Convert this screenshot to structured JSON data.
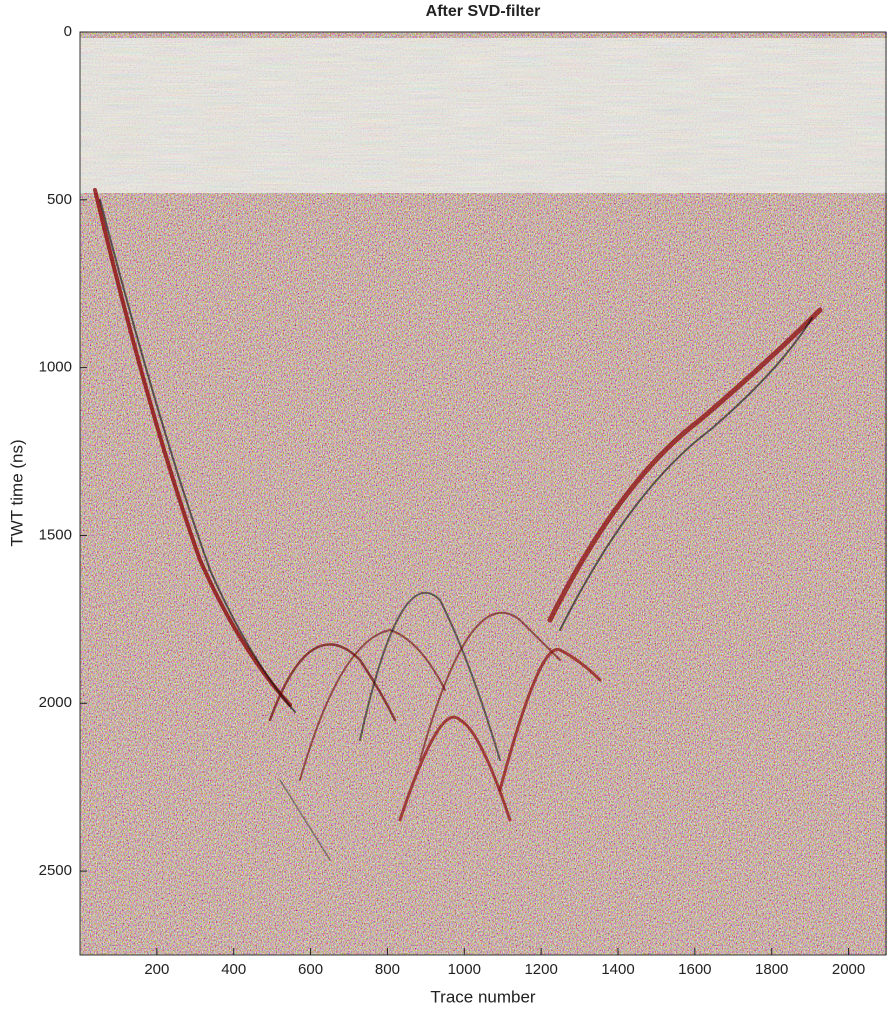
{
  "chart_data": {
    "type": "image",
    "title": "After SVD-filter",
    "x_label": "Trace number",
    "y_label": "TWT time (ns)",
    "xlim": [
      0,
      2100
    ],
    "xticks": [
      200,
      400,
      600,
      800,
      1000,
      1200,
      1400,
      1600,
      1800,
      2000
    ],
    "ylim": [
      0,
      2750
    ],
    "yticks": [
      0,
      500,
      1000,
      1500,
      2000,
      2500
    ],
    "y_inverted": true
  }
}
